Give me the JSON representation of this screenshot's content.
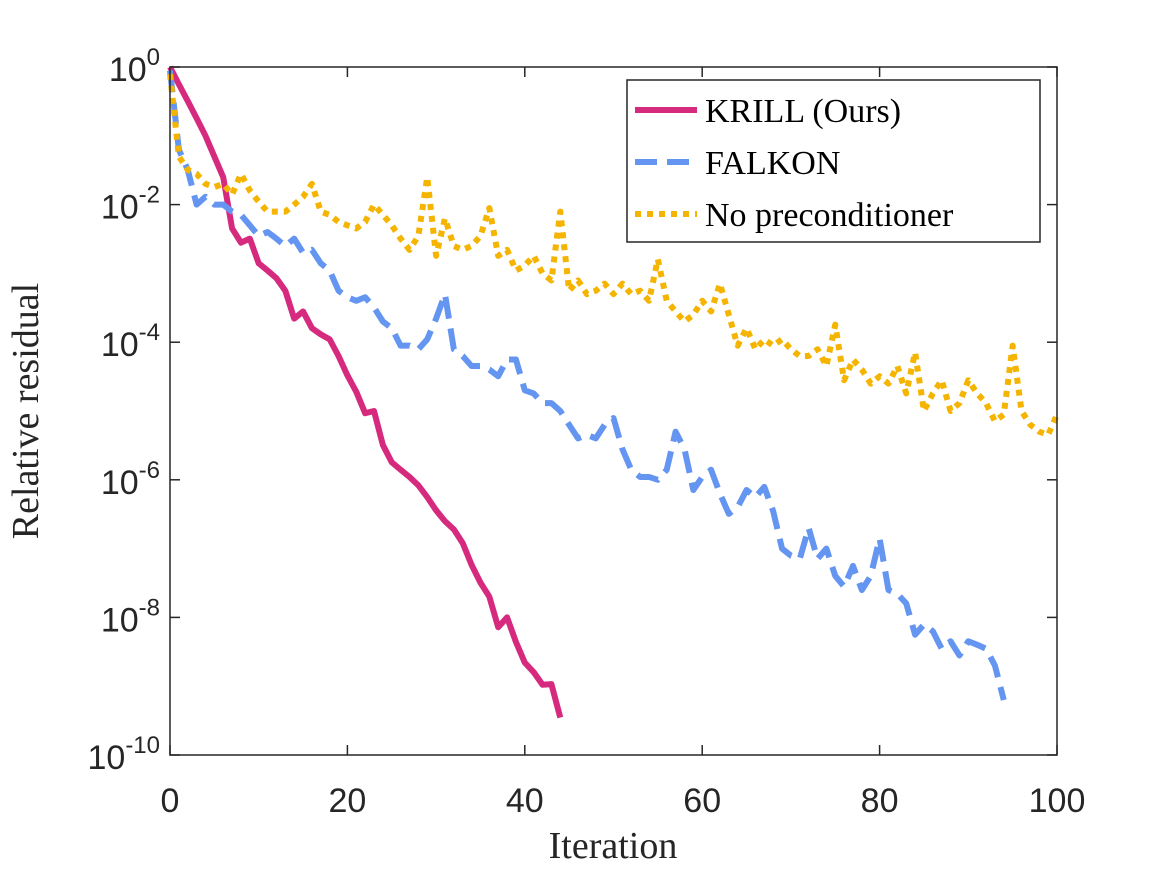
{
  "chart_data": {
    "type": "line",
    "xlabel": "Iteration",
    "ylabel": "Relative residual",
    "x": [
      0,
      1,
      2,
      3,
      4,
      5,
      6,
      7,
      8,
      9,
      10,
      11,
      12,
      13,
      14,
      15,
      16,
      17,
      18,
      19,
      20,
      21,
      22,
      23,
      24,
      25,
      26,
      27,
      28,
      29,
      30,
      31,
      32,
      33,
      34,
      35,
      36,
      37,
      38,
      39,
      40,
      41,
      42,
      43,
      44,
      45,
      46,
      47,
      48,
      49,
      50,
      51,
      52,
      53,
      54,
      55,
      56,
      57,
      58,
      59,
      60,
      61,
      62,
      63,
      64,
      65,
      66,
      67,
      68,
      69,
      70,
      71,
      72,
      73,
      74,
      75,
      76,
      77,
      78,
      79,
      80,
      81,
      82,
      83,
      84,
      85,
      86,
      87,
      88,
      89,
      90,
      91,
      92,
      93,
      94,
      95,
      96,
      97,
      98,
      99,
      100
    ],
    "series": [
      {
        "name": "KRILL (Ours)",
        "color": "#d62a7e",
        "linestyle": "solid",
        "values": [
          1,
          0.56,
          0.32,
          0.18,
          0.1,
          0.05,
          0.025,
          0.0045,
          0.0028,
          0.0032,
          0.0014,
          0.0011,
          0.00085,
          0.00056,
          0.00022,
          0.00028,
          0.00016,
          0.00013,
          0.00011,
          6.3e-05,
          3.3e-05,
          1.9e-05,
          9.3e-06,
          1e-05,
          3.2e-06,
          1.8e-06,
          1.4e-06,
          1.1e-06,
          8.3e-07,
          5.6e-07,
          3.6e-07,
          2.5e-07,
          1.9e-07,
          1.2e-07,
          5.8e-08,
          3.2e-08,
          2e-08,
          7.2e-09,
          1e-08,
          4.4e-09,
          2.2e-09,
          1.6e-09,
          1.05e-09,
          1.07e-09,
          3.5e-10,
          null,
          null,
          null,
          null,
          null,
          null,
          null,
          null,
          null,
          null,
          null,
          null,
          null,
          null,
          null,
          null,
          null,
          null,
          null,
          null,
          null,
          null,
          null,
          null,
          null,
          null,
          null,
          null,
          null,
          null,
          null,
          null,
          null,
          null,
          null,
          null,
          null,
          null,
          null,
          null,
          null,
          null,
          null,
          null,
          null,
          null,
          null,
          null,
          null,
          null,
          null,
          null,
          null,
          null,
          null,
          null
        ]
      },
      {
        "name": "FALKON",
        "color": "#6495f0",
        "linestyle": "dashed",
        "values": [
          0.89,
          0.063,
          0.032,
          0.01,
          0.013,
          0.01,
          0.01,
          0.0079,
          0.0071,
          0.005,
          0.0035,
          0.004,
          0.0032,
          0.0025,
          0.0032,
          0.002,
          0.0022,
          0.0014,
          0.0011,
          0.00056,
          0.00045,
          0.0004,
          0.00045,
          0.00032,
          0.0002,
          0.00016,
          8.9e-05,
          8.9e-05,
          7.9e-05,
          0.00011,
          0.00022,
          0.0005,
          7.9e-05,
          6.3e-05,
          4.5e-05,
          4.5e-05,
          4e-05,
          3.2e-05,
          5.6e-05,
          5.6e-05,
          2e-05,
          1.8e-05,
          1.3e-05,
          1.3e-05,
          1e-05,
          6.3e-06,
          4e-06,
          4.5e-06,
          4e-06,
          6.3e-06,
          7.9e-06,
          2.8e-06,
          1.4e-06,
          1.1e-06,
          1.1e-06,
          1e-06,
          1.4e-06,
          5e-06,
          2.8e-06,
          7.1e-07,
          1.1e-06,
          1.4e-06,
          6.3e-07,
          3.2e-07,
          4e-07,
          7.1e-07,
          5.6e-07,
          7.9e-07,
          3.5e-07,
          1e-07,
          7.9e-08,
          7.1e-08,
          2e-07,
          7.1e-08,
          1e-07,
          4e-08,
          2.8e-08,
          5.6e-08,
          2.5e-08,
          4e-08,
          1.4e-07,
          2.5e-08,
          2.2e-08,
          1.6e-08,
          5.6e-09,
          7.9e-09,
          6.3e-09,
          3.5e-09,
          4.5e-09,
          2.8e-09,
          4.5e-09,
          4e-09,
          3.5e-09,
          2e-09,
          6.3e-10,
          null,
          null,
          null,
          null,
          null,
          null
        ]
      },
      {
        "name": "No preconditioner",
        "color": "#f5b400",
        "linestyle": "dotted",
        "values": [
          0.79,
          0.05,
          0.032,
          0.028,
          0.02,
          0.018,
          0.02,
          0.014,
          0.028,
          0.016,
          0.011,
          0.0079,
          0.0079,
          0.0079,
          0.01,
          0.013,
          0.02,
          0.0079,
          0.0071,
          0.0056,
          0.005,
          0.0045,
          0.0056,
          0.01,
          0.0071,
          0.005,
          0.0032,
          0.0022,
          0.0035,
          0.025,
          0.0018,
          0.0063,
          0.0025,
          0.0022,
          0.0025,
          0.0035,
          0.0089,
          0.0018,
          0.0022,
          0.0011,
          0.0013,
          0.0018,
          0.001,
          0.00079,
          0.0079,
          0.00056,
          0.00079,
          0.0005,
          0.00056,
          0.00071,
          0.0005,
          0.00071,
          0.0005,
          0.00056,
          0.0004,
          0.0016,
          0.0004,
          0.00028,
          0.0002,
          0.00025,
          0.0004,
          0.00028,
          0.00071,
          0.00025,
          8.9e-05,
          0.00016,
          7.9e-05,
          0.00011,
          8.9e-05,
          0.00011,
          7.9e-05,
          6.3e-05,
          6.3e-05,
          7.9e-05,
          4.5e-05,
          0.00018,
          2.8e-05,
          5.6e-05,
          4e-05,
          2.5e-05,
          3.2e-05,
          2.5e-05,
          4.5e-05,
          1.8e-05,
          7.1e-05,
          1e-05,
          1.8e-05,
          2.8e-05,
          1e-05,
          1.3e-05,
          2.8e-05,
          1.8e-05,
          1.3e-05,
          7.1e-06,
          8.9e-06,
          8.9e-05,
          1e-05,
          6.3e-06,
          5e-06,
          4.5e-06,
          8.9e-06
        ]
      }
    ],
    "xlim": [
      0,
      100
    ],
    "xticks": [
      0,
      20,
      40,
      60,
      80,
      100
    ],
    "ylim": [
      1e-10,
      1
    ],
    "yscale": "log",
    "yticks": [
      {
        "value": 1e-10,
        "label": "10^-10"
      },
      {
        "value": 1e-08,
        "label": "10^-8"
      },
      {
        "value": 1e-06,
        "label": "10^-6"
      },
      {
        "value": 0.0001,
        "label": "10^-4"
      },
      {
        "value": 0.01,
        "label": "10^-2"
      },
      {
        "value": 1,
        "label": "10^0"
      }
    ],
    "legend": "northeast"
  }
}
